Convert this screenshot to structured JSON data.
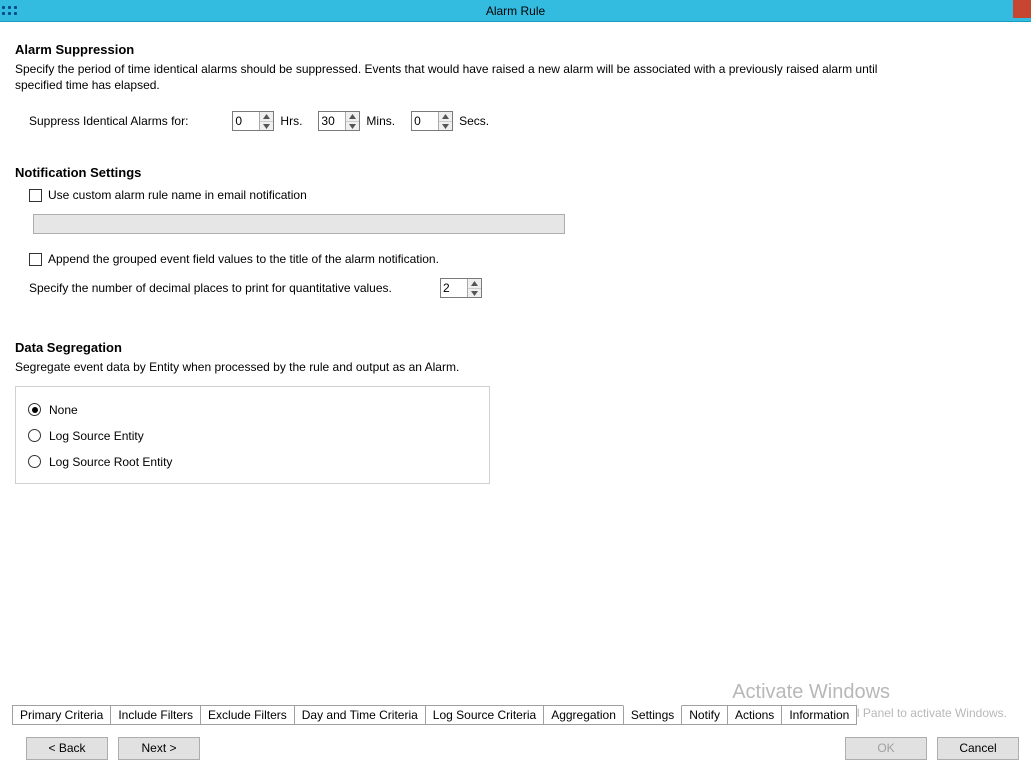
{
  "window": {
    "title": "Alarm Rule"
  },
  "suppression": {
    "heading": "Alarm Suppression",
    "description": "Specify the period of time identical alarms should be suppressed.  Events that would have raised a new alarm will be associated with a previously raised alarm until specified time has elapsed.",
    "label": "Suppress Identical Alarms for:",
    "hrs_value": "0",
    "hrs_unit": "Hrs.",
    "mins_value": "30",
    "mins_unit": "Mins.",
    "secs_value": "0",
    "secs_unit": "Secs."
  },
  "notification": {
    "heading": "Notification Settings",
    "custom_name_label": "Use custom alarm rule name in email notification",
    "custom_name_checked": false,
    "custom_name_value": "",
    "append_label": "Append the grouped event field values to the title of the alarm notification.",
    "append_checked": false,
    "decimal_label": "Specify the number of decimal places to print for quantitative values.",
    "decimal_value": "2"
  },
  "segregation": {
    "heading": "Data Segregation",
    "description": "Segregate event data by Entity when processed by the rule and output as an Alarm.",
    "options": {
      "none": "None",
      "entity": "Log Source Entity",
      "root": "Log Source Root Entity"
    },
    "selected": "none"
  },
  "tabs": {
    "items": [
      "Primary Criteria",
      "Include Filters",
      "Exclude Filters",
      "Day and Time Criteria",
      "Log Source Criteria",
      "Aggregation",
      "Settings",
      "Notify",
      "Actions",
      "Information"
    ],
    "active_index": 6
  },
  "buttons": {
    "back": "< Back",
    "next": "Next >",
    "ok": "OK",
    "cancel": "Cancel"
  },
  "watermark": {
    "title": "Activate Windows",
    "subtitle": "Go to System in Control Panel to activate Windows."
  }
}
